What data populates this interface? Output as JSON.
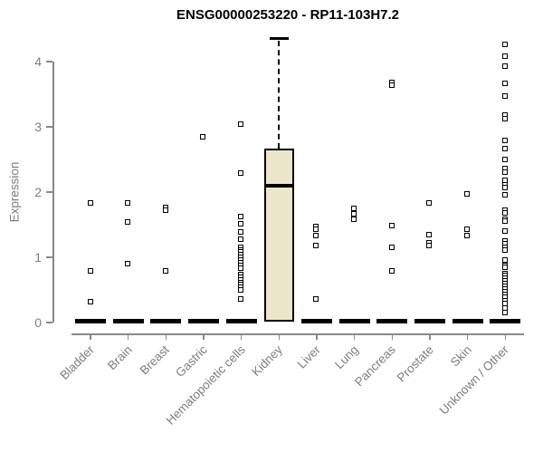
{
  "chart_data": {
    "type": "boxplot",
    "title": "ENSG00000253220 - RP11-103H7.2",
    "ylabel": "Expression",
    "xlabel": "",
    "ylim": [
      0,
      4.4
    ],
    "yticks": [
      0,
      1,
      2,
      3,
      4
    ],
    "grid": false,
    "legend": "none",
    "point_style": "open-black-square",
    "categories": [
      "Bladder",
      "Brain",
      "Breast",
      "Gastric",
      "Hematopoietic cells",
      "Kidney",
      "Liver",
      "Lung",
      "Pancreas",
      "Prostate",
      "Skin",
      "Unknown / Other"
    ],
    "groups": [
      {
        "label": "Bladder",
        "zero_bar": true,
        "points": [
          1.83,
          0.79,
          0.31
        ]
      },
      {
        "label": "Brain",
        "zero_bar": true,
        "points": [
          1.83,
          1.54,
          0.9
        ]
      },
      {
        "label": "Breast",
        "zero_bar": true,
        "points": [
          1.76,
          1.72,
          0.79
        ]
      },
      {
        "label": "Gastric",
        "zero_bar": true,
        "points": [
          2.84
        ]
      },
      {
        "label": "Hematopoietic cells",
        "zero_bar": true,
        "points": [
          3.03,
          2.29,
          1.62,
          1.51,
          1.38,
          1.27,
          1.15,
          1.11,
          1.07,
          1.03,
          0.99,
          0.95,
          0.91,
          0.87,
          0.83,
          0.73,
          0.69,
          0.65,
          0.61,
          0.57,
          0.53,
          0.49,
          0.36
        ]
      },
      {
        "label": "Kidney",
        "zero_bar": false,
        "points": [],
        "box": {
          "q1": 0.02,
          "median": 2.1,
          "q3": 2.67,
          "whisker_high": 4.36
        }
      },
      {
        "label": "Liver",
        "zero_bar": true,
        "points": [
          1.46,
          1.42,
          1.32,
          1.17,
          0.35
        ]
      },
      {
        "label": "Lung",
        "zero_bar": true,
        "points": [
          1.75,
          1.66,
          1.57
        ]
      },
      {
        "label": "Pancreas",
        "zero_bar": true,
        "points": [
          3.67,
          3.63,
          1.48,
          1.15,
          0.78
        ]
      },
      {
        "label": "Prostate",
        "zero_bar": true,
        "points": [
          1.83,
          1.34,
          1.21,
          1.18
        ]
      },
      {
        "label": "Skin",
        "zero_bar": true,
        "points": [
          1.97,
          1.43,
          1.32
        ]
      },
      {
        "label": "Unknown / Other",
        "zero_bar": true,
        "points": [
          4.26,
          4.08,
          3.93,
          3.66,
          3.47,
          3.17,
          3.12,
          2.78,
          2.66,
          2.5,
          2.36,
          2.3,
          2.18,
          2.11,
          2.06,
          1.95,
          1.72,
          1.68,
          1.58,
          1.55,
          1.39,
          1.24,
          1.2,
          1.15,
          1.11,
          0.95,
          0.87,
          0.84,
          0.75,
          0.71,
          0.67,
          0.63,
          0.59,
          0.55,
          0.51,
          0.47,
          0.43,
          0.38,
          0.33,
          0.28,
          0.22,
          0.15
        ]
      }
    ],
    "colors": {
      "box_fill": "#ECE7CB",
      "line_black": "#000000",
      "axis_gray": "#888888",
      "text_gray": "#7E7E7E"
    }
  }
}
